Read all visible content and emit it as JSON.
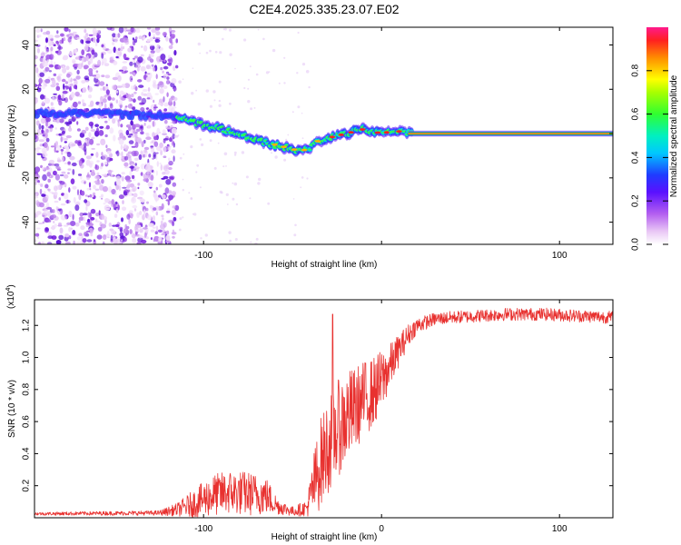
{
  "title": "C2E4.2025.335.23.07.E02",
  "colors": {
    "snr_line": "#e8312f",
    "axis": "#000000"
  },
  "chart_data": [
    {
      "type": "heatmap",
      "name": "spectrogram",
      "xlabel": "Height of straight line (km)",
      "ylabel": "Frequency (Hz)",
      "xlim": [
        -195,
        130
      ],
      "ylim": [
        -50,
        48
      ],
      "xticks": [
        -100,
        0,
        100
      ],
      "xtick_labels": [
        "-100",
        "",
        "100"
      ],
      "yticks": [
        -40,
        -20,
        0,
        20,
        40
      ],
      "ytick_labels": [
        "-40",
        "-20",
        "0",
        "20",
        "40"
      ],
      "noise_region_x": [
        -195,
        -115
      ],
      "ridge": {
        "x": [
          -195,
          -170,
          -150,
          -130,
          -115,
          -105,
          -95,
          -85,
          -75,
          -65,
          -55,
          -50,
          -45,
          -40,
          -35,
          -30,
          -25,
          -20,
          -15,
          -10,
          -5,
          0,
          5,
          10,
          15,
          130
        ],
        "freq": [
          9,
          9,
          9,
          8,
          8,
          5,
          3,
          1,
          -2,
          -4,
          -6,
          -7,
          -8,
          -6,
          -3,
          -2,
          -1,
          0,
          1,
          2,
          1,
          0,
          1,
          1,
          0,
          0
        ]
      },
      "colorbar": {
        "label": "Normalized spectral amplitude",
        "range": [
          0,
          1
        ],
        "ticks": [
          0.0,
          0.2,
          0.4,
          0.6,
          0.8
        ],
        "tick_labels": [
          "0.0",
          "0.2",
          "0.4",
          "0.6",
          "0.8"
        ]
      }
    },
    {
      "type": "line",
      "name": "snr",
      "xlabel": "Height of straight line (km)",
      "ylabel": "SNR (10 * v/v)",
      "scale_label": "(x10",
      "scale_exponent": "4",
      "xlim": [
        -195,
        130
      ],
      "ylim": [
        0,
        1.36
      ],
      "xticks": [
        -100,
        0,
        100
      ],
      "xtick_labels": [
        "-100",
        "0",
        "100"
      ],
      "yticks": [
        0.2,
        0.4,
        0.6,
        0.8,
        1.0,
        1.2
      ],
      "ytick_labels": [
        "0.2",
        "0.4",
        "0.6",
        "0.8",
        "1.0",
        "1.2"
      ],
      "envelope": {
        "x": [
          -195,
          -125,
          -115,
          -105,
          -95,
          -85,
          -75,
          -65,
          -58,
          -50,
          -42,
          -38,
          -34,
          -30,
          -25,
          -20,
          -15,
          -10,
          -5,
          0,
          5,
          10,
          15,
          20,
          30,
          40,
          55,
          70,
          90,
          110,
          130
        ],
        "mean": [
          0.025,
          0.03,
          0.05,
          0.09,
          0.14,
          0.16,
          0.15,
          0.14,
          0.07,
          0.04,
          0.06,
          0.2,
          0.35,
          0.45,
          0.55,
          0.62,
          0.68,
          0.74,
          0.78,
          0.85,
          0.95,
          1.05,
          1.14,
          1.2,
          1.24,
          1.25,
          1.26,
          1.27,
          1.27,
          1.26,
          1.25
        ],
        "amp": [
          0.01,
          0.015,
          0.04,
          0.09,
          0.13,
          0.14,
          0.14,
          0.12,
          0.05,
          0.03,
          0.05,
          0.22,
          0.28,
          0.3,
          0.3,
          0.3,
          0.26,
          0.24,
          0.22,
          0.2,
          0.14,
          0.1,
          0.07,
          0.05,
          0.04,
          0.04,
          0.04,
          0.04,
          0.04,
          0.04,
          0.04
        ]
      },
      "peak": {
        "x": -27.5,
        "y": 1.27
      }
    }
  ]
}
